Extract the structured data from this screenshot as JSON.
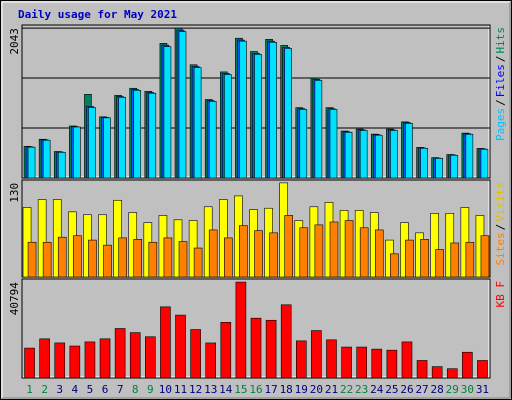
{
  "chart_data": [
    {
      "type": "bar",
      "title": "Daily usage for May 2021",
      "series": [
        {
          "name": "Pages",
          "color": "#00e0ff",
          "legend_color": "#00c0ff",
          "values": [
            420,
            515,
            350,
            695,
            960,
            820,
            1100,
            1195,
            1155,
            1790,
            1995,
            1505,
            1045,
            1410,
            1865,
            1685,
            1850,
            1765,
            935,
            1330,
            935,
            622,
            648,
            583,
            648,
            745,
            405,
            268,
            310,
            596,
            392
          ]
        },
        {
          "name": "Files",
          "color": "#0060ff",
          "legend_color": "#0000ff",
          "values": [
            425,
            520,
            355,
            700,
            975,
            825,
            1110,
            1205,
            1165,
            1810,
            2015,
            1520,
            1055,
            1425,
            1880,
            1700,
            1865,
            1780,
            945,
            1345,
            945,
            630,
            655,
            590,
            655,
            755,
            410,
            272,
            315,
            603,
            397
          ]
        },
        {
          "name": "Hits",
          "color": "#00805c",
          "legend_color": "#00805c",
          "values": [
            431,
            528,
            361,
            709,
            1140,
            834,
            1126,
            1223,
            1181,
            1835,
            2043,
            1543,
            1070,
            1446,
            1905,
            1724,
            1890,
            1807,
            959,
            1362,
            959,
            640,
            667,
            598,
            667,
            765,
            417,
            278,
            320,
            612,
            403
          ]
        }
      ],
      "ylim": [
        0,
        2085
      ],
      "yticks": [
        2043
      ],
      "grid_divisions": 3
    },
    {
      "type": "bar",
      "series": [
        {
          "name": "Sites",
          "color": "#ff8000",
          "legend_color": "#ff8000",
          "values": [
            48,
            48,
            55,
            57,
            51,
            44,
            54,
            52,
            48,
            54,
            49,
            40,
            65,
            54,
            71,
            64,
            61,
            85,
            68,
            72,
            76,
            78,
            68,
            65,
            32,
            51,
            52,
            38,
            47,
            48,
            57
          ]
        },
        {
          "name": "Visits",
          "color": "#ffff00",
          "legend_color": "#e0c000",
          "values": [
            96,
            107,
            107,
            90,
            86,
            86,
            106,
            89,
            75,
            85,
            79,
            78,
            97,
            107,
            112,
            93,
            95,
            130,
            78,
            97,
            103,
            92,
            92,
            89,
            51,
            75,
            61,
            88,
            88,
            96,
            85
          ]
        }
      ],
      "ylim": [
        0,
        134
      ],
      "yticks": [
        130
      ]
    },
    {
      "type": "bar",
      "categories": [
        "1",
        "2",
        "3",
        "4",
        "5",
        "6",
        "7",
        "8",
        "9",
        "10",
        "11",
        "12",
        "13",
        "14",
        "15",
        "16",
        "17",
        "18",
        "19",
        "20",
        "21",
        "22",
        "23",
        "24",
        "25",
        "26",
        "27",
        "28",
        "29",
        "30",
        "31"
      ],
      "category_colors": [
        "#008040",
        "#008040",
        "#000080",
        "#000080",
        "#000080",
        "#000080",
        "#000080",
        "#008040",
        "#008040",
        "#000080",
        "#000080",
        "#000080",
        "#000080",
        "#000080",
        "#008040",
        "#008040",
        "#000080",
        "#000080",
        "#000080",
        "#000080",
        "#000080",
        "#008040",
        "#008040",
        "#000080",
        "#000080",
        "#000080",
        "#000080",
        "#000080",
        "#008040",
        "#008040",
        "#000080"
      ],
      "series": [
        {
          "name": "KB F",
          "color": "#ff0000",
          "legend_color": "#ff0000",
          "values": [
            12719,
            16667,
            14912,
            13597,
            15351,
            16667,
            21053,
            19298,
            17544,
            30263,
            26755,
            20614,
            14912,
            23684,
            40794,
            25439,
            24562,
            31141,
            15790,
            20176,
            16228,
            13158,
            13158,
            12281,
            11842,
            15351,
            7456,
            4825,
            3947,
            10965,
            7456
          ]
        }
      ],
      "ylim": [
        0,
        42110
      ],
      "yticks": [
        40794
      ]
    }
  ],
  "legend_separator": "/"
}
